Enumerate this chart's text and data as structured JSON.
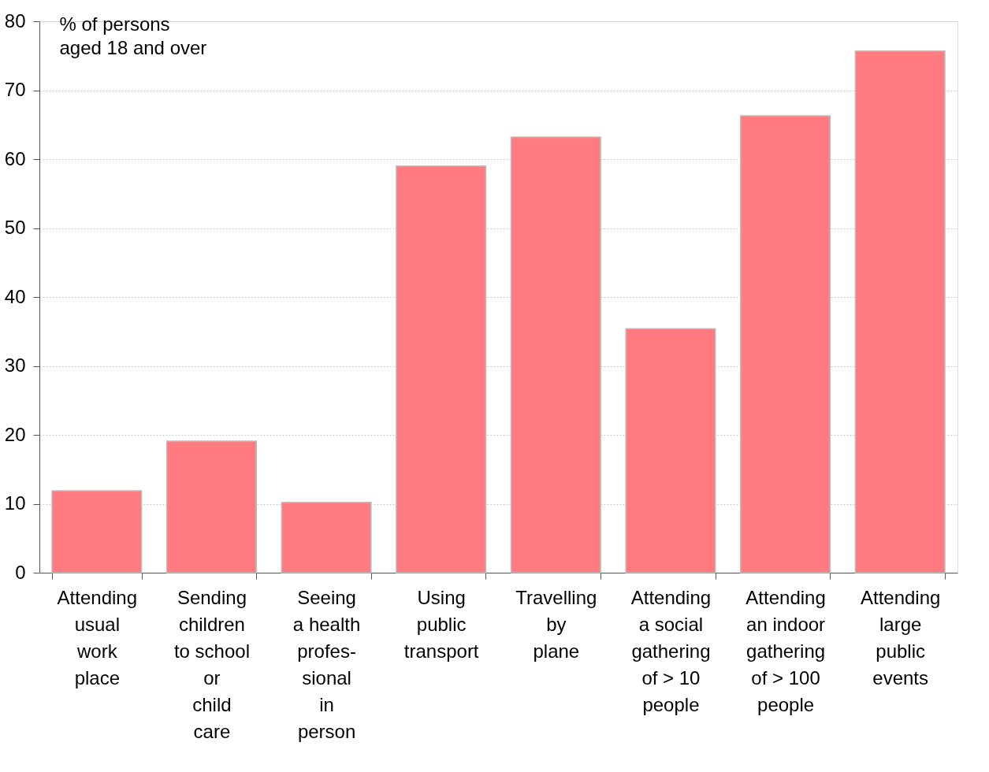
{
  "chart_data": {
    "type": "bar",
    "ylabel": "% of persons\naged 18 and over",
    "categories": [
      "Attending\nusual\nwork\nplace",
      "Sending\nchildren\nto school\nor\nchild\ncare",
      "Seeing\na health\nprofes-\nsional\nin\nperson",
      "Using\npublic\ntransport",
      "Travelling\nby\nplane",
      "Attending\na social\ngathering\nof > 10\npeople",
      "Attending\nan indoor\ngathering\nof > 100\npeople",
      "Attending\nlarge\npublic\nevents"
    ],
    "values": [
      11.9,
      19.1,
      10.2,
      59.0,
      63.2,
      35.4,
      66.3,
      75.7
    ],
    "color": "#ff7b80",
    "ylim": [
      0,
      80
    ],
    "yticks": [
      0,
      10,
      20,
      30,
      40,
      50,
      60,
      70,
      80
    ],
    "grid": "y"
  }
}
